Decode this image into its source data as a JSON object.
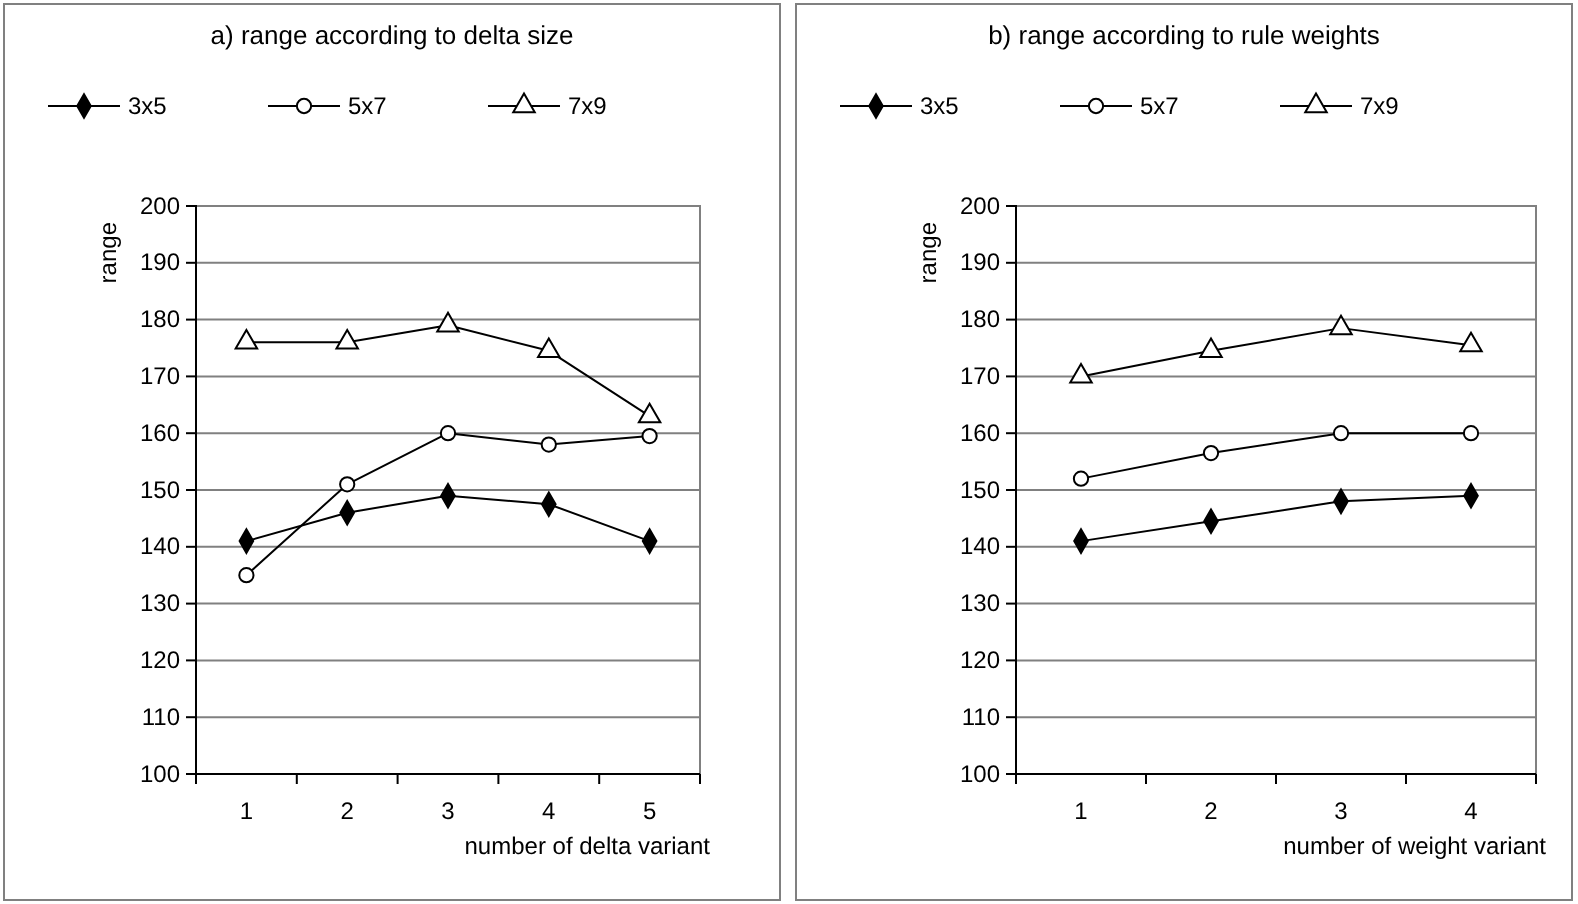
{
  "chart_data": [
    {
      "type": "line",
      "title": "a) range according to delta size",
      "xlabel": "number of delta variant",
      "ylabel": "range",
      "categories": [
        "1",
        "2",
        "3",
        "4",
        "5"
      ],
      "ylim": [
        100,
        200
      ],
      "yticks": [
        100,
        110,
        120,
        130,
        140,
        150,
        160,
        170,
        180,
        190,
        200
      ],
      "grid": "y",
      "legend": "top",
      "series": [
        {
          "name": "3x5",
          "color": "#000000",
          "marker": "diamond",
          "values": [
            141,
            146,
            149,
            147.5,
            141
          ]
        },
        {
          "name": "5x7",
          "color": "#000000",
          "marker": "circle",
          "values": [
            135,
            151,
            160,
            158,
            159.5
          ]
        },
        {
          "name": "7x9",
          "color": "#000000",
          "marker": "triangle",
          "values": [
            176,
            176,
            179,
            174.5,
            163
          ]
        }
      ]
    },
    {
      "type": "line",
      "title": "b) range according to rule weights",
      "xlabel": "number of weight variant",
      "ylabel": "range",
      "categories": [
        "1",
        "2",
        "3",
        "4"
      ],
      "ylim": [
        100,
        200
      ],
      "yticks": [
        100,
        110,
        120,
        130,
        140,
        150,
        160,
        170,
        180,
        190,
        200
      ],
      "grid": "y",
      "legend": "top",
      "series": [
        {
          "name": "3x5",
          "color": "#000000",
          "marker": "diamond",
          "values": [
            141,
            144.5,
            148,
            149
          ]
        },
        {
          "name": "5x7",
          "color": "#000000",
          "marker": "circle",
          "values": [
            152,
            156.5,
            160,
            160
          ]
        },
        {
          "name": "7x9",
          "color": "#000000",
          "marker": "triangle",
          "values": [
            170,
            174.5,
            178.5,
            175.5
          ]
        }
      ]
    }
  ]
}
